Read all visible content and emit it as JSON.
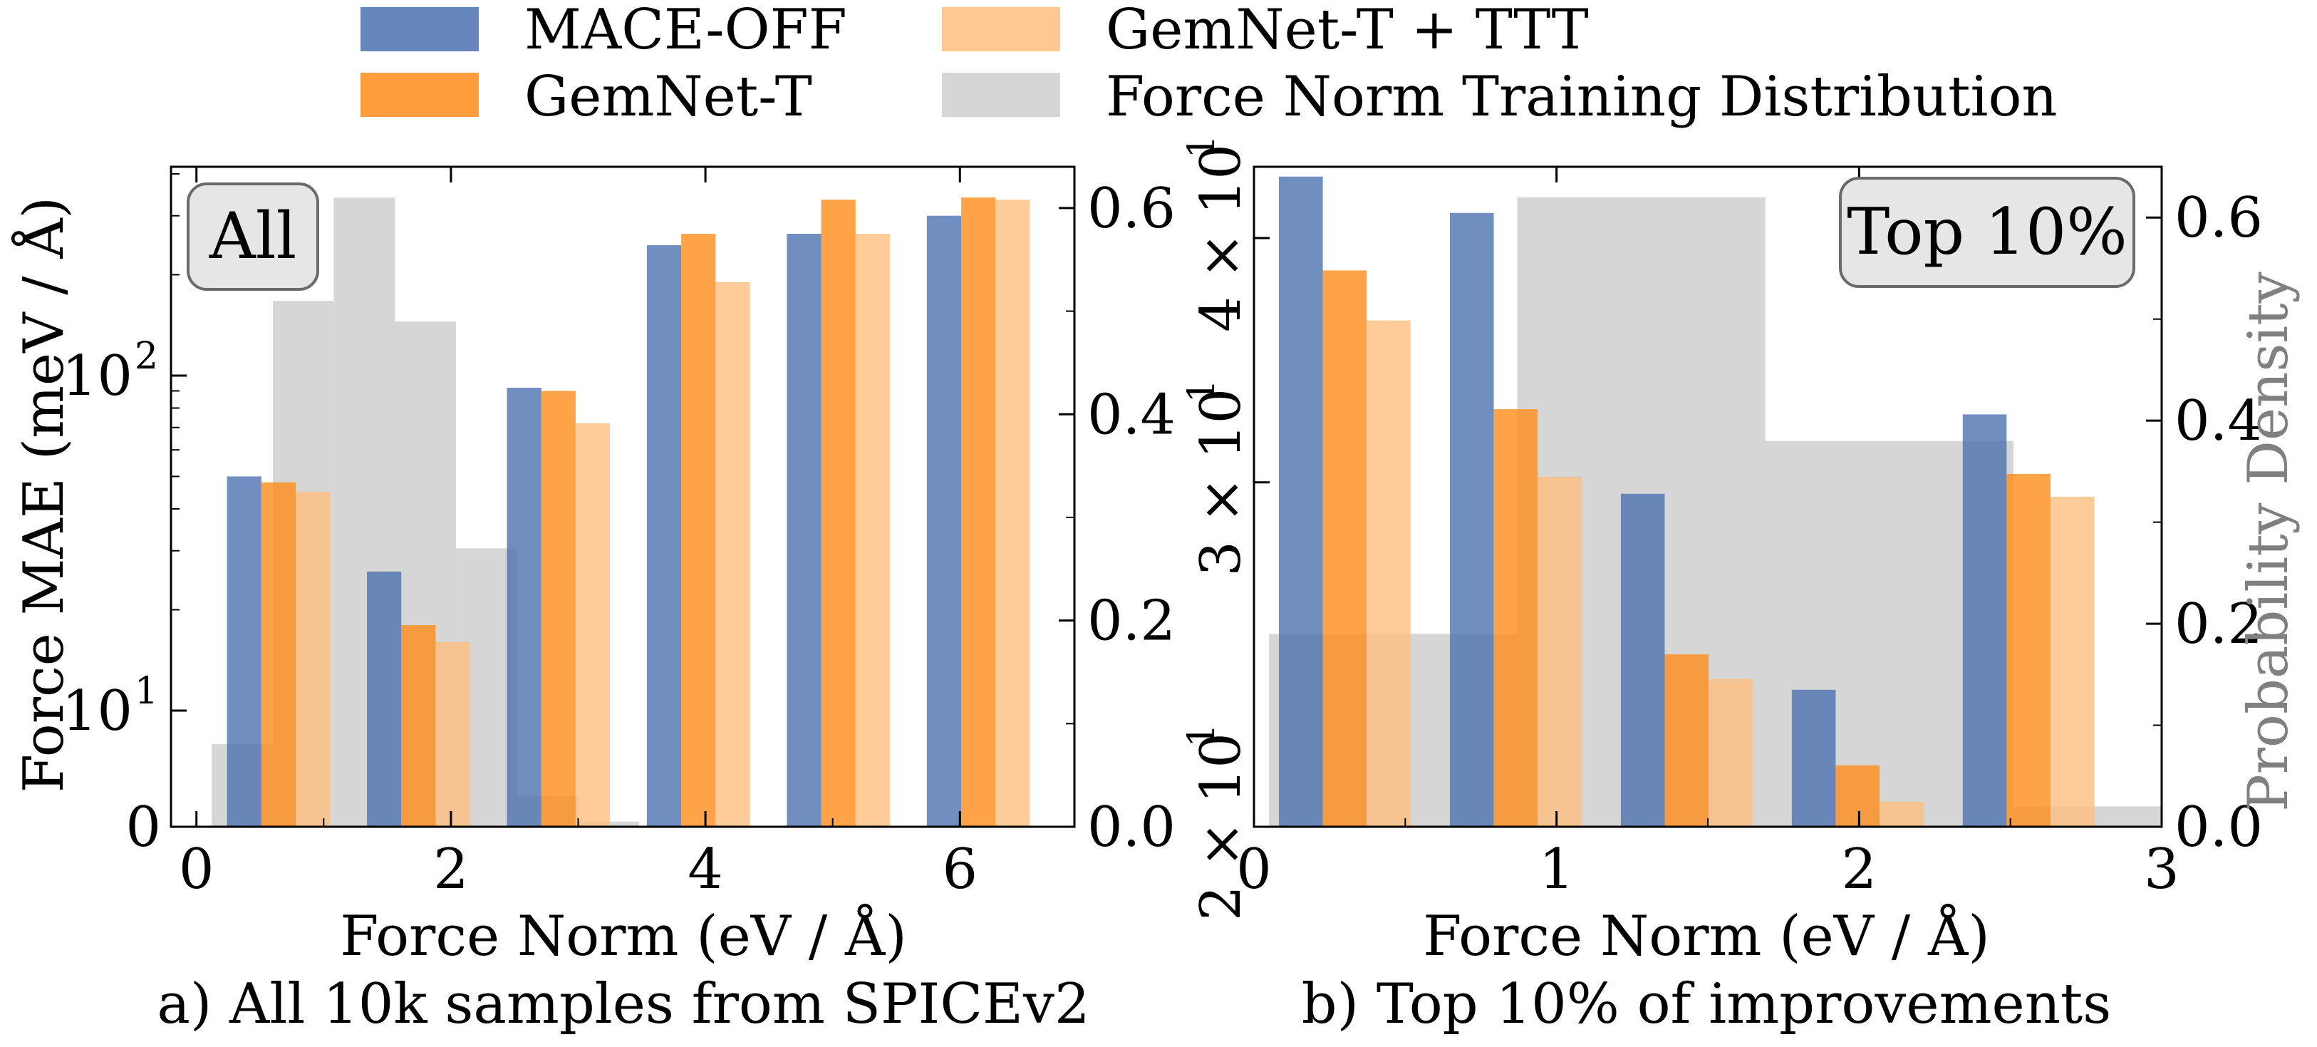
{
  "colors": {
    "mace": "#4c72b0",
    "gemnet": "#ff8c1a",
    "gemnet_ttt": "#ffbe80",
    "train_dist": "#c8c8c8"
  },
  "legend": [
    {
      "key": "mace",
      "label": "MACE-OFF"
    },
    {
      "key": "gemnet",
      "label": "GemNet-T"
    },
    {
      "key": "gemnet_ttt",
      "label": "GemNet-T + TTT"
    },
    {
      "key": "train_dist",
      "label": "Force Norm Training Distribution"
    }
  ],
  "chart_data": [
    {
      "type": "bar",
      "badge": "All",
      "caption": "a) All 10k samples from SPICEv2",
      "xlabel": "Force Norm (eV / Å)",
      "ylabel": "Force MAE (meV / Å)",
      "ylabel_right": "",
      "yscale": "log",
      "xlim": [
        -0.2,
        6.9
      ],
      "ylim": [
        4.5,
        420
      ],
      "ylim_right": [
        0,
        0.64
      ],
      "xticks": [
        0,
        2,
        4,
        6
      ],
      "xtick_labels": [
        "0",
        "2",
        "4",
        "6"
      ],
      "yticks_left": [
        {
          "base": "0",
          "exp": ""
        },
        {
          "base": "10",
          "exp": "1"
        },
        {
          "base": "10",
          "exp": "2"
        }
      ],
      "yticks_right": [
        "0.0",
        "0.2",
        "0.4",
        "0.6"
      ],
      "bar_width": 0.27,
      "series": [
        {
          "key": "mace",
          "x": [
            0.375,
            1.475,
            2.575,
            3.675,
            4.775,
            5.875
          ],
          "values": [
            50,
            26,
            92,
            245,
            265,
            300
          ]
        },
        {
          "key": "gemnet",
          "x": [
            0.645,
            1.745,
            2.845,
            3.945,
            5.045,
            6.145
          ],
          "values": [
            48,
            18,
            90,
            265,
            335,
            340
          ]
        },
        {
          "key": "gemnet_ttt",
          "x": [
            0.915,
            2.015,
            3.115,
            4.215,
            5.315,
            6.415
          ],
          "values": [
            45,
            16,
            72,
            190,
            265,
            335
          ]
        }
      ],
      "distribution": {
        "edges": [
          0.12,
          0.6,
          1.08,
          1.56,
          2.04,
          2.52,
          3.0,
          3.48
        ],
        "density": [
          0.08,
          0.51,
          0.61,
          0.49,
          0.27,
          0.03,
          0.005
        ]
      }
    },
    {
      "type": "bar",
      "badge": "Top 10%",
      "caption": "b) Top 10% of improvements",
      "xlabel": "Force Norm (eV / Å)",
      "ylabel": "",
      "ylabel_right": "Probability Density",
      "yscale": "log",
      "xlim": [
        0,
        3
      ],
      "ylim": [
        20,
        43.5
      ],
      "ylim_right": [
        0,
        0.65
      ],
      "xticks": [
        0,
        1,
        2,
        3
      ],
      "xtick_labels": [
        "0",
        "1",
        "2",
        "3"
      ],
      "yticks_left": [
        {
          "value": 20,
          "base": "2 × 10",
          "exp": "1"
        },
        {
          "value": 30,
          "base": "3 × 10",
          "exp": "1"
        },
        {
          "value": 40,
          "base": "4 × 10",
          "exp": "1"
        }
      ],
      "yticks_right": [
        "0.0",
        "0.2",
        "0.4",
        "0.6"
      ],
      "bar_width": 0.145,
      "series": [
        {
          "key": "mace",
          "x": [
            0.155,
            0.72,
            1.285,
            1.85,
            2.415
          ],
          "values": [
            43,
            41.2,
            29.6,
            23.5,
            32.5
          ]
        },
        {
          "key": "gemnet",
          "x": [
            0.3,
            0.865,
            1.43,
            1.995,
            2.56
          ],
          "values": [
            38.5,
            32.7,
            24.5,
            21.5,
            30.3
          ]
        },
        {
          "key": "gemnet_ttt",
          "x": [
            0.445,
            1.01,
            1.575,
            2.14,
            2.705
          ],
          "values": [
            36.3,
            30.2,
            23.8,
            20.6,
            29.5
          ]
        }
      ],
      "distribution": {
        "edges": [
          0.05,
          0.87,
          1.69,
          2.51,
          3.0
        ],
        "density": [
          0.19,
          0.62,
          0.38,
          0.02
        ]
      }
    }
  ]
}
